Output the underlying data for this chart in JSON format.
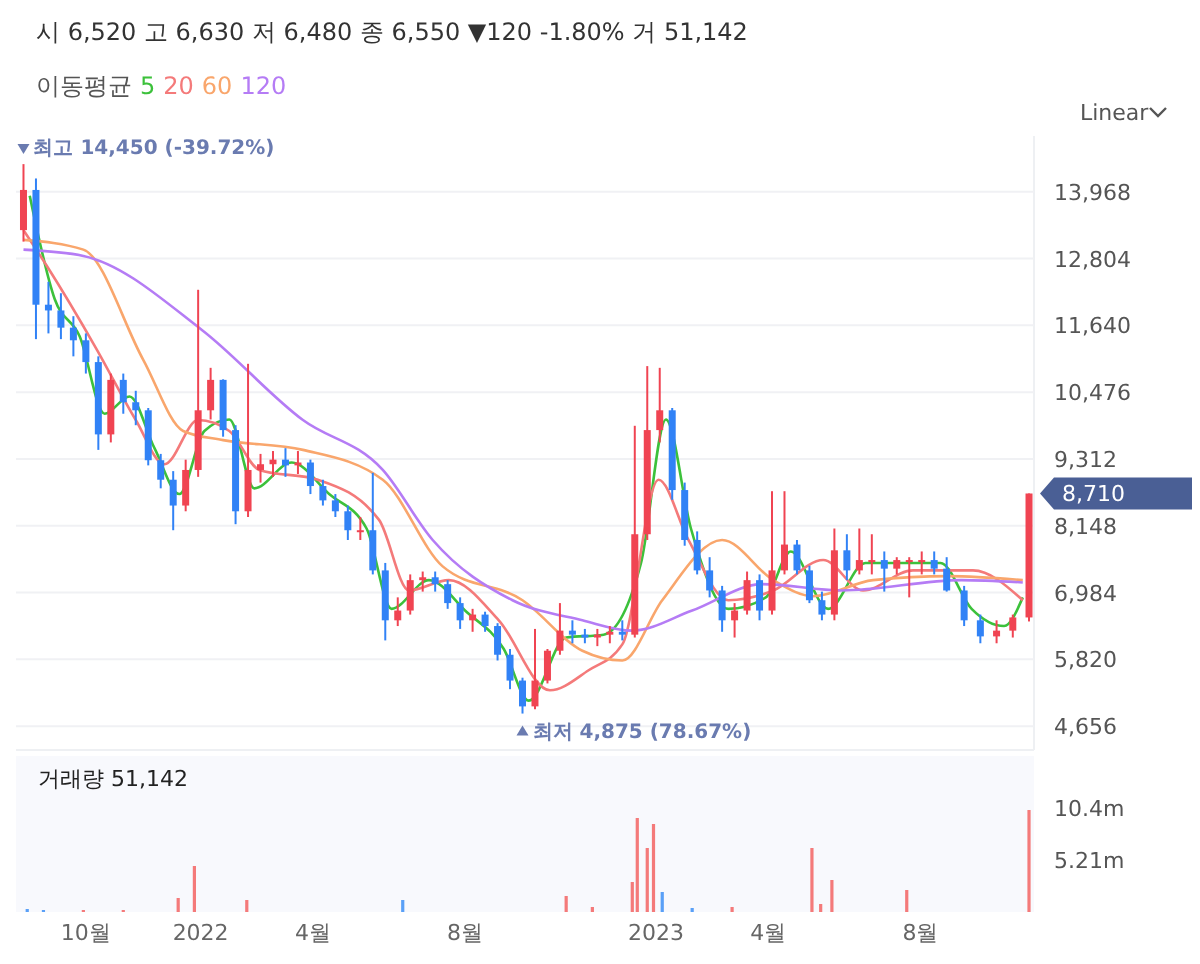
{
  "chart_data": [
    {
      "type": "candlestick",
      "subtitle": "시 6,520 고 6,630 저 6,480 종 6,550 ▼120 -1.80% 거 51,142",
      "legend_title": "이동평균",
      "legend": "top left",
      "grid": "y",
      "tick_labels": "y",
      "xlim": [
        "2021-08-06",
        "2023-10-31"
      ],
      "ylim": [
        4240,
        14940
      ],
      "yticks": [
        {
          "value": 4656,
          "label": "4,656"
        },
        {
          "value": 5820,
          "label": "5,820"
        },
        {
          "value": 6984,
          "label": "6,984"
        },
        {
          "value": 8148,
          "label": "8,148"
        },
        {
          "value": 9312,
          "label": "9,312"
        },
        {
          "value": 10476,
          "label": "10,476"
        },
        {
          "value": 11640,
          "label": "11,640"
        },
        {
          "value": 12804,
          "label": "12,804"
        },
        {
          "value": 13968,
          "label": "13,968"
        }
      ],
      "x": [
        "2021-08-12",
        "2021-08-22",
        "2021-09-01",
        "2021-09-11",
        "2021-09-21",
        "2021-10-01",
        "2021-10-11",
        "2021-10-21",
        "2021-10-31",
        "2021-11-10",
        "2021-11-20",
        "2021-11-30",
        "2021-12-10",
        "2021-12-20",
        "2021-12-30",
        "2022-01-09",
        "2022-01-19",
        "2022-01-29",
        "2022-02-08",
        "2022-02-18",
        "2022-02-28",
        "2022-03-10",
        "2022-03-20",
        "2022-03-30",
        "2022-04-09",
        "2022-04-19",
        "2022-04-29",
        "2022-05-09",
        "2022-05-19",
        "2022-05-29",
        "2022-06-08",
        "2022-06-18",
        "2022-06-28",
        "2022-07-08",
        "2022-07-18",
        "2022-07-28",
        "2022-08-07",
        "2022-08-17",
        "2022-08-27",
        "2022-09-06",
        "2022-09-16",
        "2022-09-26",
        "2022-10-06",
        "2022-10-16",
        "2022-10-26",
        "2022-11-05",
        "2022-11-15",
        "2022-11-25",
        "2022-12-05",
        "2022-12-15",
        "2022-12-25",
        "2023-01-04",
        "2023-01-14",
        "2023-01-24",
        "2023-02-03",
        "2023-02-13",
        "2023-02-23",
        "2023-03-05",
        "2023-03-15",
        "2023-03-25",
        "2023-04-04",
        "2023-04-14",
        "2023-04-24",
        "2023-05-04",
        "2023-05-14",
        "2023-05-24",
        "2023-06-03",
        "2023-06-13",
        "2023-06-23",
        "2023-07-03",
        "2023-07-13",
        "2023-07-23",
        "2023-08-02",
        "2023-08-12",
        "2023-08-22",
        "2023-09-05",
        "2023-09-18",
        "2023-10-01",
        "2023-10-14",
        "2023-10-27"
      ],
      "ohlc": [
        [
          13300,
          14450,
          13100,
          14000
        ],
        [
          14000,
          14200,
          11400,
          12000
        ],
        [
          12000,
          12400,
          11500,
          11900
        ],
        [
          11900,
          12200,
          11400,
          11600
        ],
        [
          11600,
          11800,
          11100,
          11380
        ],
        [
          11380,
          11500,
          10800,
          11000
        ],
        [
          11000,
          11100,
          9470,
          9740
        ],
        [
          9740,
          10800,
          9600,
          10690
        ],
        [
          10690,
          10800,
          10100,
          10300
        ],
        [
          10300,
          10500,
          9900,
          10160
        ],
        [
          10160,
          10200,
          9200,
          9290
        ],
        [
          9290,
          9400,
          8800,
          8950
        ],
        [
          8950,
          9100,
          8070,
          8500
        ],
        [
          8500,
          9300,
          8400,
          9120
        ],
        [
          9120,
          12260,
          9000,
          10160
        ],
        [
          10160,
          10900,
          10000,
          10690
        ],
        [
          10690,
          10700,
          9700,
          9815
        ],
        [
          9815,
          9900,
          8175,
          8400
        ],
        [
          8400,
          10970,
          8300,
          9120
        ],
        [
          9120,
          9400,
          8900,
          9220
        ],
        [
          9220,
          9450,
          9000,
          9300
        ],
        [
          9300,
          9500,
          9000,
          9200
        ],
        [
          9200,
          9450,
          9050,
          9250
        ],
        [
          9250,
          9300,
          8700,
          8840
        ],
        [
          8840,
          8950,
          8500,
          8590
        ],
        [
          8590,
          8700,
          8300,
          8400
        ],
        [
          8400,
          8500,
          7900,
          8070
        ],
        [
          8070,
          8300,
          7900,
          8070
        ],
        [
          8070,
          9070,
          7300,
          7370
        ],
        [
          7370,
          7500,
          6150,
          6500
        ],
        [
          6500,
          6900,
          6400,
          6670
        ],
        [
          6670,
          7300,
          6600,
          7200
        ],
        [
          7200,
          7350,
          7000,
          7250
        ],
        [
          7250,
          7350,
          7000,
          7130
        ],
        [
          7130,
          7200,
          6700,
          6800
        ],
        [
          6800,
          6900,
          6350,
          6500
        ],
        [
          6500,
          6700,
          6300,
          6600
        ],
        [
          6600,
          6650,
          6300,
          6400
        ],
        [
          6400,
          6450,
          5800,
          5900
        ],
        [
          5900,
          6000,
          5300,
          5450
        ],
        [
          5450,
          5500,
          4875,
          5000
        ],
        [
          5000,
          6350,
          4950,
          5450
        ],
        [
          5450,
          6000,
          5400,
          5970
        ],
        [
          5970,
          6800,
          5900,
          6320
        ],
        [
          6320,
          6500,
          6100,
          6250
        ],
        [
          6250,
          6350,
          6100,
          6200
        ],
        [
          6200,
          6350,
          6050,
          6250
        ],
        [
          6250,
          6400,
          6100,
          6300
        ],
        [
          6300,
          6500,
          6150,
          6250
        ],
        [
          6250,
          9890,
          6200,
          8000
        ],
        [
          8000,
          10930,
          7900,
          9815
        ],
        [
          9815,
          10900,
          9600,
          10160
        ],
        [
          10160,
          10200,
          8600,
          8770
        ],
        [
          8770,
          8900,
          7800,
          7900
        ],
        [
          7900,
          8050,
          7300,
          7370
        ],
        [
          7370,
          7600,
          6900,
          7020
        ],
        [
          7020,
          7100,
          6300,
          6500
        ],
        [
          6500,
          6800,
          6200,
          6670
        ],
        [
          6670,
          7350,
          6600,
          7200
        ],
        [
          7200,
          7300,
          6500,
          6670
        ],
        [
          6670,
          8750,
          6600,
          7370
        ],
        [
          7370,
          8750,
          7300,
          7820
        ],
        [
          7820,
          7900,
          7300,
          7370
        ],
        [
          7370,
          7450,
          6800,
          6850
        ],
        [
          6850,
          7000,
          6500,
          6600
        ],
        [
          6600,
          8100,
          6500,
          7720
        ],
        [
          7720,
          8000,
          7200,
          7370
        ],
        [
          7370,
          8100,
          7300,
          7550
        ],
        [
          7550,
          8000,
          7300,
          7550
        ],
        [
          7550,
          7700,
          7000,
          7400
        ],
        [
          7400,
          7600,
          7300,
          7550
        ],
        [
          7550,
          7600,
          6900,
          7550
        ],
        [
          7550,
          7700,
          7300,
          7550
        ],
        [
          7550,
          7700,
          7300,
          7400
        ],
        [
          7400,
          7600,
          7000,
          7020
        ],
        [
          7020,
          7100,
          6400,
          6500
        ],
        [
          6500,
          6600,
          6100,
          6220
        ],
        [
          6220,
          6500,
          6100,
          6320
        ],
        [
          6320,
          6600,
          6200,
          6550
        ],
        [
          6550,
          8710,
          6480,
          8710
        ]
      ],
      "series": [
        {
          "type": "line",
          "name": "5",
          "color": "#3cc13b",
          "x": [
            "2021-08-17",
            "2021-09-06",
            "2021-09-26",
            "2021-10-16",
            "2021-11-05",
            "2021-11-25",
            "2021-12-15",
            "2022-01-04",
            "2022-01-24",
            "2022-02-13",
            "2022-03-15",
            "2022-04-14",
            "2022-05-14",
            "2022-06-03",
            "2022-07-03",
            "2022-08-02",
            "2022-09-01",
            "2022-09-21",
            "2022-10-21",
            "2022-11-20",
            "2022-12-20",
            "2023-01-09",
            "2023-01-29",
            "2023-02-28",
            "2023-03-30",
            "2023-04-19",
            "2023-05-19",
            "2023-06-18",
            "2023-07-18",
            "2023-08-17",
            "2023-09-11",
            "2023-10-07",
            "2023-10-22"
          ],
          "values": [
            13900,
            12100,
            11450,
            10100,
            10400,
            9500,
            8700,
            9800,
            10000,
            8800,
            9250,
            8700,
            8100,
            6700,
            7200,
            6650,
            6000,
            5100,
            6200,
            6250,
            7500,
            10000,
            8100,
            6700,
            6900,
            7700,
            6700,
            7500,
            7500,
            7500,
            6700,
            6400,
            6900
          ]
        },
        {
          "type": "line",
          "name": "20",
          "color": "#f47a7a",
          "x": [
            "2021-08-12",
            "2021-08-30",
            "2021-10-10",
            "2021-11-10",
            "2021-12-03",
            "2021-12-30",
            "2022-01-24",
            "2022-02-17",
            "2022-04-05",
            "2022-05-24",
            "2022-06-17",
            "2022-07-19",
            "2022-08-28",
            "2022-10-08",
            "2022-11-08",
            "2022-12-05",
            "2023-01-03",
            "2023-01-27",
            "2023-02-28",
            "2023-04-05",
            "2023-05-15",
            "2023-06-16",
            "2023-07-26",
            "2023-09-12",
            "2023-10-22"
          ],
          "values": [
            13300,
            12700,
            11210,
            9990,
            9220,
            9990,
            9800,
            9120,
            8950,
            8250,
            7020,
            7200,
            6500,
            5280,
            5630,
            6080,
            8950,
            7900,
            6850,
            7020,
            7550,
            7020,
            7370,
            7370,
            6850
          ]
        },
        {
          "type": "line",
          "name": "60",
          "color": "#f9a66c",
          "x": [
            "2021-08-12",
            "2021-09-29",
            "2021-11-16",
            "2021-12-18",
            "2022-01-19",
            "2022-03-24",
            "2022-05-27",
            "2022-07-14",
            "2022-09-16",
            "2022-11-03",
            "2022-12-05",
            "2023-01-06",
            "2023-02-23",
            "2023-04-05",
            "2023-05-07",
            "2023-06-24",
            "2023-08-24",
            "2023-10-22"
          ],
          "values": [
            13130,
            12960,
            11040,
            9800,
            9640,
            9470,
            8950,
            7440,
            6850,
            5970,
            5800,
            6850,
            7900,
            7200,
            6920,
            7200,
            7270,
            7200
          ]
        },
        {
          "type": "line",
          "name": "120",
          "color": "#b57cf5",
          "x": [
            "2021-08-12",
            "2021-09-29",
            "2022-01-02",
            "2022-03-24",
            "2022-05-27",
            "2022-07-06",
            "2022-09-08",
            "2022-11-03",
            "2022-12-13",
            "2023-01-30",
            "2023-03-27",
            "2023-05-30",
            "2023-09-03",
            "2023-10-22"
          ],
          "values": [
            12960,
            12850,
            11560,
            9990,
            9120,
            7900,
            6850,
            6500,
            6320,
            6670,
            7130,
            7020,
            7200,
            7160
          ]
        }
      ],
      "annotations": [
        "Linear",
        {
          "text": "최고 14,450 (-39.72%)",
          "x": "2021-08-12",
          "y": 14450
        },
        {
          "text": "최저 4,875 (78.67%)",
          "x": "2022-09-16",
          "y": 4875
        },
        {
          "text": "8,710",
          "x": "2023-10-27",
          "y": 8710
        }
      ]
    },
    {
      "type": "bar",
      "title": "거래량 51,142",
      "xlim": [
        "2021-08-06",
        "2023-10-31"
      ],
      "xticks": [
        {
          "value": "2021-10-01",
          "label": "10월"
        },
        {
          "value": "2022-01-01",
          "label": "2022"
        },
        {
          "value": "2022-04-01",
          "label": "4월"
        },
        {
          "value": "2022-08-01",
          "label": "8월"
        },
        {
          "value": "2023-01-01",
          "label": "2023"
        },
        {
          "value": "2023-04-01",
          "label": "4월"
        },
        {
          "value": "2023-08-01",
          "label": "8월"
        }
      ],
      "ylim": [
        0,
        15.6
      ],
      "yticks": [
        {
          "value": 5.21,
          "label": "5.21m"
        },
        {
          "value": 10.42,
          "label": "10.4m"
        }
      ],
      "x": [
        "2021-08-15",
        "2021-08-28",
        "2021-09-29",
        "2021-10-31",
        "2021-12-14",
        "2021-12-27",
        "2022-02-07",
        "2022-06-12",
        "2022-10-21",
        "2022-11-11",
        "2022-12-13",
        "2022-12-17",
        "2022-12-25",
        "2022-12-30",
        "2023-01-06",
        "2023-01-30",
        "2023-03-03",
        "2023-05-06",
        "2023-05-13",
        "2023-05-22",
        "2023-07-21",
        "2023-10-27"
      ],
      "values": [
        0.3,
        0.2,
        0.2,
        0.2,
        1.4,
        4.6,
        1.2,
        1.2,
        1.6,
        0.5,
        3.0,
        9.4,
        6.4,
        8.8,
        2.0,
        0.4,
        0.5,
        6.4,
        0.8,
        3.2,
        2.2,
        10.2
      ],
      "colors": [
        "#5aa0f7",
        "#5aa0f7",
        "#f47a7a",
        "#f47a7a",
        "#f47a7a",
        "#f47a7a",
        "#f47a7a",
        "#5aa0f7",
        "#f47a7a",
        "#f47a7a",
        "#f47a7a",
        "#f47a7a",
        "#f47a7a",
        "#f47a7a",
        "#5aa0f7",
        "#5aa0f7",
        "#f47a7a",
        "#f47a7a",
        "#f47a7a",
        "#f47a7a",
        "#f47a7a",
        "#f47a7a"
      ]
    }
  ]
}
